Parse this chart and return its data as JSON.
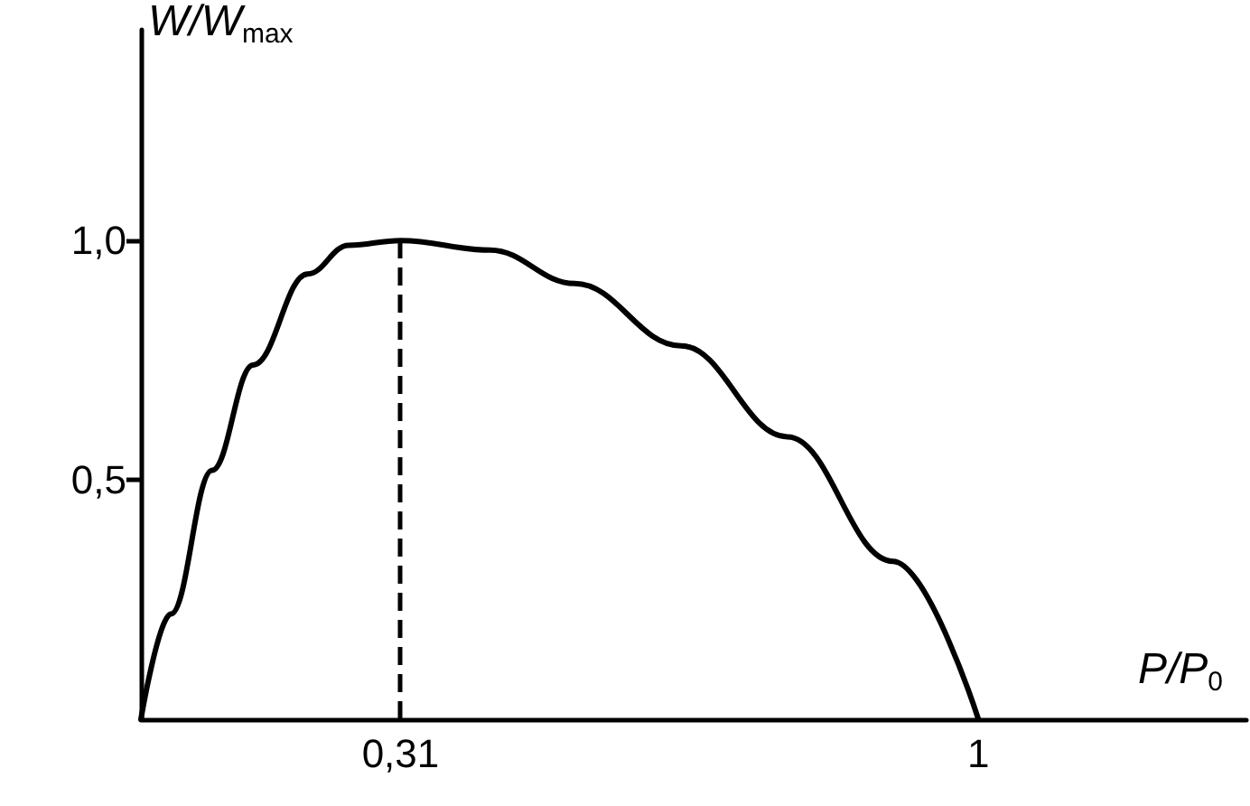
{
  "chart_data": {
    "type": "line",
    "xlabel": "P/P$_{0}$",
    "ylabel": "W/W$_{max}$",
    "x": [
      0,
      0.036,
      0.085,
      0.134,
      0.199,
      0.248,
      0.31,
      0.417,
      0.518,
      0.645,
      0.772,
      0.898,
      1
    ],
    "series": [
      {
        "color": "#000000",
        "values": [
          0,
          0.22,
          0.52,
          0.74,
          0.93,
          0.99,
          1,
          0.98,
          0.91,
          0.78,
          0.59,
          0.33,
          0
        ]
      }
    ],
    "xlim": [
      0,
      1.32
    ],
    "ylim": [
      0,
      1.44
    ],
    "xticks": [
      {
        "value": 0.31,
        "label": "0,31"
      },
      1
    ],
    "yticks": [
      {
        "value": 0.5,
        "label": "0,5"
      },
      {
        "value": 1,
        "label": "1,0"
      }
    ],
    "ref_lines": [
      {
        "axis": "x",
        "value": 0.31,
        "line_style": "dashed",
        "color": "#000000"
      }
    ],
    "grid": false,
    "marker": "none",
    "line_style": "solid"
  }
}
